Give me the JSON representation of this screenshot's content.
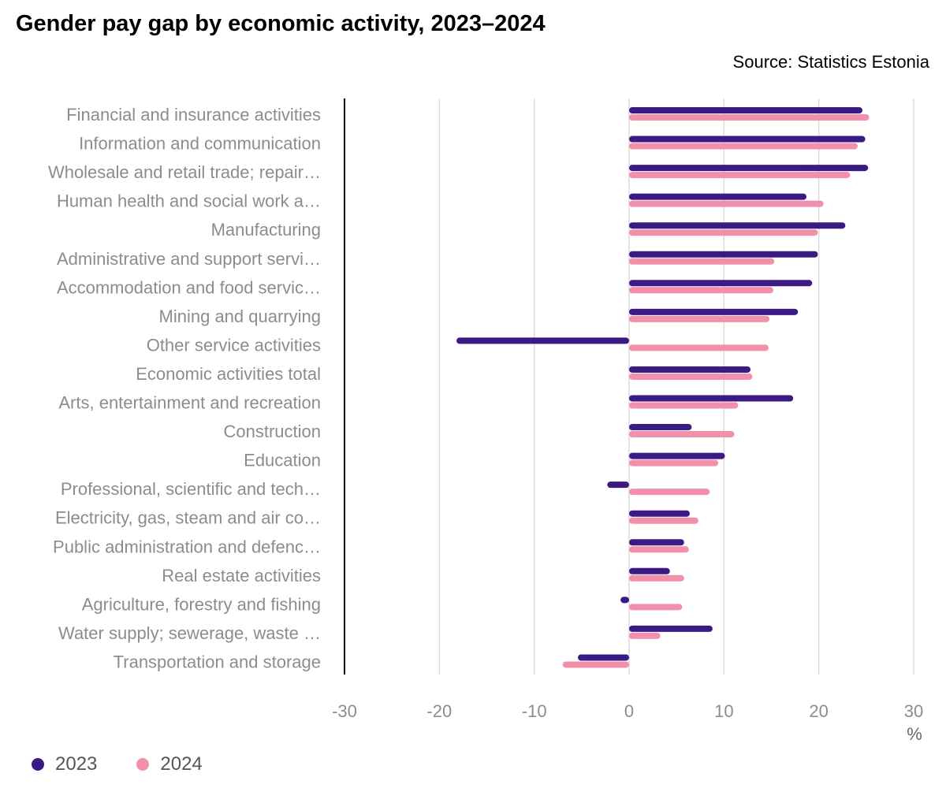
{
  "title": "Gender pay gap by economic activity, 2023–2024",
  "source": "Source: Statistics Estonia",
  "colors": {
    "2023": "#3b1a84",
    "2024": "#f28fab"
  },
  "chart_data": {
    "type": "bar",
    "orientation": "horizontal",
    "title": "Gender pay gap by economic activity, 2023–2024",
    "xlabel": "%",
    "xlim": [
      -30,
      30
    ],
    "xticks": [
      -30,
      -20,
      -10,
      0,
      10,
      20,
      30
    ],
    "grid": true,
    "legend_position": "bottom-left",
    "categories": [
      "Financial and insurance activities",
      "Information and communication",
      "Wholesale and retail trade; repair…",
      "Human health and social work a…",
      "Manufacturing",
      "Administrative and support servi…",
      "Accommodation and food servic…",
      "Mining and quarrying",
      "Other service activities",
      "Economic activities total",
      "Arts, entertainment and recreation",
      "Construction",
      "Education",
      "Professional, scientific and tech…",
      "Electricity, gas, steam and air co…",
      "Public administration and defenc…",
      "Real estate activities",
      "Agriculture, forestry and fishing",
      "Water supply; sewerage, waste …",
      "Transportation and storage"
    ],
    "series": [
      {
        "name": "2023",
        "values": [
          24.6,
          24.9,
          25.2,
          18.7,
          22.8,
          19.9,
          19.3,
          17.8,
          -18.2,
          12.8,
          17.3,
          6.6,
          10.1,
          -2.3,
          6.4,
          5.8,
          4.3,
          -0.9,
          8.8,
          -5.4
        ]
      },
      {
        "name": "2024",
        "values": [
          25.3,
          24.1,
          23.3,
          20.5,
          19.9,
          15.3,
          15.2,
          14.8,
          14.7,
          13.0,
          11.5,
          11.1,
          9.4,
          8.5,
          7.3,
          6.3,
          5.8,
          5.6,
          3.3,
          -7.0
        ]
      }
    ]
  }
}
